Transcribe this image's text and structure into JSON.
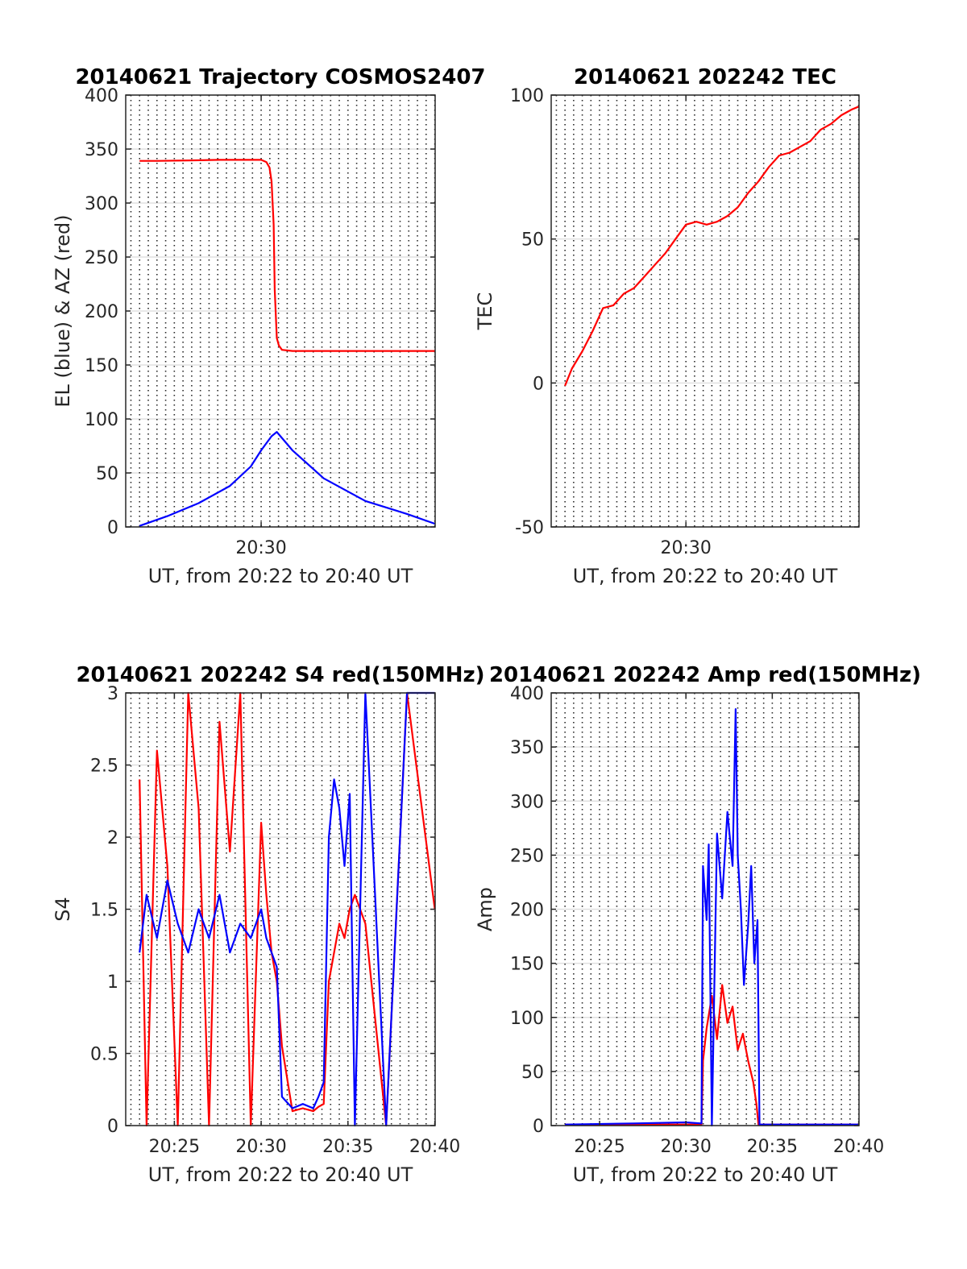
{
  "chart_data": [
    {
      "type": "line",
      "title": "20140621 Trajectory COSMOS2407",
      "xlabel": "UT, from 20:22 to 20:40 UT",
      "ylabel": "EL (blue) & AZ (red)",
      "xlim": [
        20.37,
        20.667
      ],
      "ylim": [
        0,
        400
      ],
      "xticks": [
        {
          "value": 20.5,
          "label": "20:30"
        }
      ],
      "yticks": [
        0,
        50,
        100,
        150,
        200,
        250,
        300,
        350,
        400
      ],
      "grid": "vertical dotted every 30 s, horizontal light",
      "series": [
        {
          "name": "AZ",
          "color": "#ff0000",
          "x": [
            20.3833,
            20.4,
            20.43,
            20.46,
            20.49,
            20.5,
            20.505,
            20.508,
            20.51,
            20.512,
            20.513,
            20.515,
            20.517,
            20.52,
            20.53,
            20.56,
            20.6,
            20.64,
            20.6667
          ],
          "y": [
            339,
            339,
            339.5,
            340,
            340,
            340,
            338,
            333,
            320,
            280,
            220,
            175,
            168,
            164,
            163,
            163,
            163,
            163,
            163
          ]
        },
        {
          "name": "EL",
          "color": "#0000ff",
          "x": [
            20.3833,
            20.41,
            20.44,
            20.47,
            20.49,
            20.5,
            20.51,
            20.515,
            20.53,
            20.56,
            20.6,
            20.64,
            20.6667
          ],
          "y": [
            1,
            10,
            22,
            38,
            56,
            71,
            84,
            88,
            71,
            45,
            24,
            12,
            3
          ]
        }
      ]
    },
    {
      "type": "line",
      "title": "20140621 202242 TEC",
      "xlabel": "UT, from 20:22 to 20:40 UT",
      "ylabel": "TEC",
      "xlim": [
        20.37,
        20.667
      ],
      "ylim": [
        -50,
        100
      ],
      "xticks": [
        {
          "value": 20.5,
          "label": "20:30"
        }
      ],
      "yticks": [
        -50,
        0,
        50,
        100
      ],
      "grid": "vertical dotted every 30 s, horizontal light",
      "series": [
        {
          "name": "TEC",
          "color": "#ff0000",
          "x": [
            20.3833,
            20.39,
            20.4,
            20.41,
            20.42,
            20.43,
            20.44,
            20.45,
            20.46,
            20.47,
            20.48,
            20.49,
            20.5,
            20.51,
            20.52,
            20.53,
            20.54,
            20.55,
            20.56,
            20.57,
            20.58,
            20.59,
            20.6,
            20.61,
            20.62,
            20.63,
            20.64,
            20.65,
            20.66,
            20.6667
          ],
          "y": [
            -1,
            5,
            11,
            18,
            26,
            27,
            31,
            33,
            37,
            41,
            45,
            50,
            55,
            56,
            55,
            56,
            58,
            61,
            66,
            70,
            75,
            79,
            80,
            82,
            84,
            88,
            90,
            93,
            95,
            96
          ]
        }
      ]
    },
    {
      "type": "line",
      "title": "20140621 202242 S4 red(150MHz)",
      "xlabel": "UT, from 20:22 to 20:40 UT",
      "ylabel": "S4",
      "xlim": [
        20.37,
        20.667
      ],
      "ylim": [
        0,
        3
      ],
      "xticks": [
        {
          "value": 20.4167,
          "label": "20:25"
        },
        {
          "value": 20.5,
          "label": "20:30"
        },
        {
          "value": 20.5833,
          "label": "20:35"
        },
        {
          "value": 20.6667,
          "label": "20:40"
        }
      ],
      "yticks": [
        0,
        0.5,
        1,
        1.5,
        2,
        2.5,
        3
      ],
      "grid": "vertical dotted every 30 s, horizontal light",
      "series": [
        {
          "name": "S4 red",
          "color": "#ff0000",
          "x": [
            20.3833,
            20.39,
            20.4,
            20.41,
            20.42,
            20.43,
            20.44,
            20.45,
            20.46,
            20.47,
            20.48,
            20.49,
            20.5,
            20.505,
            20.51,
            20.515,
            20.52,
            20.53,
            20.54,
            20.55,
            20.555,
            20.56,
            20.565,
            20.57,
            20.575,
            20.58,
            20.585,
            20.59,
            20.6,
            20.62,
            20.64,
            20.6667
          ],
          "y": [
            2.4,
            0.0,
            2.6,
            1.8,
            0.0,
            3.0,
            2.2,
            0.0,
            2.8,
            1.9,
            3.0,
            0.0,
            2.1,
            1.6,
            1.2,
            1.0,
            0.55,
            0.1,
            0.12,
            0.1,
            0.13,
            0.15,
            1.0,
            1.2,
            1.4,
            1.3,
            1.5,
            1.6,
            1.4,
            0.0,
            3.0,
            1.5
          ]
        },
        {
          "name": "S4 blue",
          "color": "#0000ff",
          "x": [
            20.3833,
            20.39,
            20.4,
            20.41,
            20.42,
            20.43,
            20.44,
            20.45,
            20.46,
            20.47,
            20.48,
            20.49,
            20.5,
            20.505,
            20.51,
            20.515,
            20.52,
            20.53,
            20.54,
            20.55,
            20.555,
            20.56,
            20.565,
            20.57,
            20.575,
            20.58,
            20.585,
            20.59,
            20.6,
            20.62,
            20.64,
            20.6667
          ],
          "y": [
            1.2,
            1.6,
            1.3,
            1.7,
            1.4,
            1.2,
            1.5,
            1.3,
            1.6,
            1.2,
            1.4,
            1.3,
            1.5,
            1.3,
            1.2,
            1.1,
            0.2,
            0.12,
            0.15,
            0.12,
            0.2,
            0.3,
            2.0,
            2.4,
            2.2,
            1.8,
            2.3,
            0.0,
            3.0,
            0.0,
            3.0,
            3.0
          ]
        }
      ]
    },
    {
      "type": "line",
      "title": "20140621 202242 Amp red(150MHz)",
      "xlabel": "UT, from 20:22 to 20:40 UT",
      "ylabel": "Amp",
      "xlim": [
        20.37,
        20.667
      ],
      "ylim": [
        0,
        400
      ],
      "xticks": [
        {
          "value": 20.4167,
          "label": "20:25"
        },
        {
          "value": 20.5,
          "label": "20:30"
        },
        {
          "value": 20.5833,
          "label": "20:35"
        },
        {
          "value": 20.6667,
          "label": "20:40"
        }
      ],
      "yticks": [
        0,
        50,
        100,
        150,
        200,
        250,
        300,
        350,
        400
      ],
      "grid": "vertical dotted every 30 s, horizontal light",
      "series": [
        {
          "name": "Amp red",
          "color": "#ff0000",
          "x": [
            20.3833,
            20.5,
            20.515,
            20.5165,
            20.52,
            20.525,
            20.53,
            20.535,
            20.54,
            20.545,
            20.55,
            20.555,
            20.56,
            20.565,
            20.568,
            20.57,
            20.6667
          ],
          "y": [
            1,
            1,
            1,
            60,
            90,
            120,
            80,
            130,
            95,
            110,
            70,
            85,
            60,
            40,
            20,
            1,
            1
          ]
        },
        {
          "name": "Amp blue",
          "color": "#0000ff",
          "x": [
            20.3833,
            20.45,
            20.5,
            20.515,
            20.5165,
            20.52,
            20.522,
            20.525,
            20.53,
            20.535,
            20.54,
            20.545,
            20.548,
            20.55,
            20.553,
            20.556,
            20.56,
            20.563,
            20.566,
            20.569,
            20.571,
            20.6667
          ],
          "y": [
            1,
            2,
            3,
            2,
            240,
            190,
            260,
            0,
            270,
            210,
            290,
            240,
            385,
            250,
            200,
            130,
            185,
            240,
            150,
            190,
            1,
            1
          ]
        }
      ]
    }
  ]
}
